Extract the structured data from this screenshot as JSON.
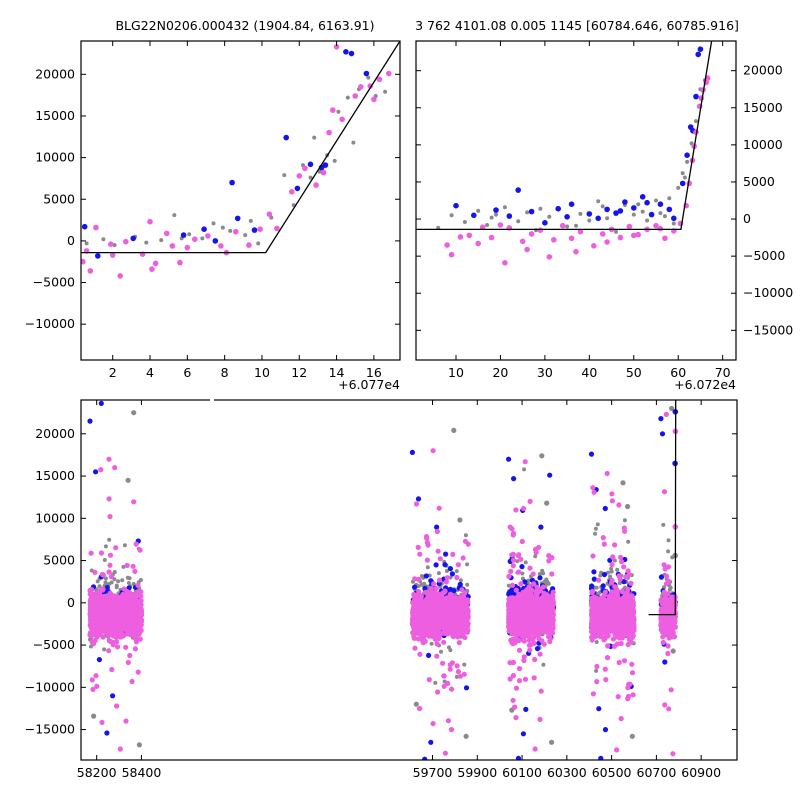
{
  "titles": {
    "left": "BLG22N0206.000432 (1904.84, 6163.91)",
    "right": "3 762 4101.08 0.005 1145 [60784.646, 60785.916]"
  },
  "colors": {
    "gray": "#8a8a8a",
    "blue": "#1414ee",
    "pink": "#ee5ee0",
    "model": "#000000"
  },
  "chart_data": [
    {
      "name": "zoom-short",
      "type": "scatter",
      "title": "BLG22N0206.000432 (1904.84, 6163.91)",
      "offset_label": "+6.077e4",
      "xlim": [
        0.3,
        17.4
      ],
      "ylim": [
        -14300,
        24000
      ],
      "xticks": [
        2,
        4,
        6,
        8,
        10,
        12,
        14,
        16
      ],
      "yticks": [
        -10000,
        -5000,
        0,
        5000,
        10000,
        15000,
        20000
      ],
      "model": {
        "x": [
          0.3,
          10.2,
          17.4
        ],
        "y": [
          -1400,
          -1400,
          24000
        ]
      },
      "series": [
        {
          "name": "gray",
          "color": "#8a8a8a",
          "x": [
            0.6,
            1.5,
            2.1,
            3.2,
            3.8,
            4.6,
            5.3,
            6.1,
            6.8,
            7.4,
            8.3,
            9.1,
            9.8,
            10.5,
            11.2,
            11.7,
            12.2,
            12.8,
            13.1,
            13.5,
            14.1,
            14.6,
            15.2,
            15.7,
            16.1,
            16.6,
            9.4,
            7.9,
            5.7,
            12.6,
            13.9,
            14.9
          ],
          "y": [
            -300,
            200,
            -500,
            500,
            -200,
            100,
            3100,
            800,
            300,
            2100,
            1200,
            700,
            -300,
            2800,
            7900,
            4300,
            9100,
            12400,
            8300,
            10300,
            15500,
            17200,
            18200,
            19600,
            17400,
            17900,
            2400,
            1600,
            300,
            7600,
            9600,
            11800
          ]
        },
        {
          "name": "blue",
          "color": "#1414ee",
          "x": [
            0.5,
            1.2,
            3.1,
            5.8,
            6.9,
            7.5,
            8.4,
            8.7,
            9.6,
            11.3,
            11.9,
            12.6,
            13.2,
            13.4,
            14.5,
            14.8,
            15.6
          ],
          "y": [
            1700,
            -1800,
            300,
            700,
            1400,
            0,
            7000,
            2700,
            1300,
            12400,
            6300,
            9200,
            8800,
            9100,
            22700,
            22500,
            20100
          ]
        },
        {
          "name": "pink",
          "color": "#ee5ee0",
          "x": [
            0.4,
            0.8,
            1.1,
            1.9,
            2.4,
            2.7,
            3.6,
            4.0,
            4.3,
            4.9,
            5.2,
            5.6,
            6.4,
            7.1,
            7.8,
            8.6,
            9.3,
            9.9,
            10.8,
            11.6,
            12.3,
            12.9,
            13.3,
            13.6,
            14.0,
            14.3,
            15.0,
            15.3,
            15.8,
            16.3,
            0.6,
            2.0,
            4.1,
            6.0,
            8.1,
            10.4,
            12.0,
            13.8,
            16.0,
            16.8
          ],
          "y": [
            -2500,
            -3600,
            1600,
            -400,
            -4200,
            -100,
            -1600,
            2300,
            -2700,
            900,
            -600,
            -2600,
            200,
            600,
            -600,
            1100,
            -500,
            1400,
            1500,
            5900,
            8700,
            6700,
            8200,
            13000,
            23300,
            14600,
            17400,
            18500,
            18600,
            19400,
            -1200,
            -1700,
            -3400,
            -800,
            -1400,
            3200,
            7800,
            15700,
            17000,
            20100
          ]
        }
      ]
    },
    {
      "name": "zoom-long",
      "type": "scatter",
      "offset_label": "+6.072e4",
      "xlim": [
        1,
        73
      ],
      "ylim": [
        -19000,
        24000
      ],
      "xticks": [
        10,
        20,
        30,
        40,
        50,
        60,
        70
      ],
      "yticks": [
        -15000,
        -10000,
        -5000,
        0,
        5000,
        10000,
        15000,
        20000
      ],
      "model": {
        "x": [
          1,
          60.6,
          67.5
        ],
        "y": [
          -1400,
          -1400,
          24000
        ]
      },
      "series": [
        {
          "name": "gray",
          "color": "#8a8a8a",
          "x": [
            6,
            9,
            12,
            15,
            17,
            19,
            21,
            24,
            26,
            28,
            31,
            33,
            35,
            38,
            40,
            42,
            44,
            46,
            48,
            50,
            52,
            53,
            55,
            57,
            58,
            59,
            60,
            61,
            62,
            63,
            64,
            65,
            66,
            18,
            29,
            37,
            43,
            51,
            56,
            61.5
          ],
          "y": [
            -1200,
            500,
            -400,
            1100,
            -800,
            600,
            1600,
            -300,
            900,
            -1500,
            300,
            1300,
            -1000,
            700,
            -200,
            2400,
            100,
            -1700,
            1900,
            600,
            1000,
            -200,
            2500,
            400,
            2800,
            -600,
            4200,
            6200,
            7700,
            10200,
            13200,
            17500,
            18700,
            200,
            1400,
            -900,
            1700,
            2000,
            800,
            5600
          ]
        },
        {
          "name": "blue",
          "color": "#1414ee",
          "x": [
            10,
            14,
            19,
            22,
            24,
            27,
            30,
            33,
            36,
            40,
            42,
            44,
            46,
            48,
            50,
            52,
            54,
            56,
            58,
            59,
            61,
            62,
            62.8,
            63.3,
            64,
            64.5,
            65,
            35,
            47,
            53
          ],
          "y": [
            1800,
            500,
            1200,
            400,
            3900,
            1000,
            -500,
            1400,
            2000,
            700,
            100,
            1300,
            800,
            2300,
            1500,
            3000,
            600,
            2000,
            1300,
            100,
            4800,
            8600,
            12400,
            11900,
            16500,
            22200,
            22900,
            300,
            1100,
            2200
          ]
        },
        {
          "name": "pink",
          "color": "#ee5ee0",
          "x": [
            8,
            11,
            13,
            16,
            18,
            20,
            22,
            25,
            27,
            29,
            32,
            34,
            36,
            38,
            41,
            43,
            45,
            47,
            49,
            51,
            53,
            55,
            57,
            59,
            60.5,
            61.8,
            62.5,
            63.2,
            64,
            64.8,
            65.6,
            66.3,
            9,
            15,
            21,
            26,
            31,
            37,
            44,
            50,
            56,
            63.6,
            65.2,
            66.6
          ],
          "y": [
            -3500,
            -2400,
            -2200,
            -1100,
            -2500,
            -800,
            -1200,
            -3000,
            -2000,
            -1500,
            -2800,
            -900,
            -2600,
            -1700,
            -3600,
            -2000,
            -1400,
            -2500,
            -1000,
            -2100,
            -1400,
            -900,
            -2600,
            -1600,
            -600,
            1800,
            4800,
            7900,
            11700,
            15200,
            17400,
            18400,
            -4800,
            -3300,
            -5900,
            -4100,
            -5100,
            -4400,
            -3100,
            -2200,
            -1300,
            9800,
            16300,
            19000
          ]
        }
      ]
    },
    {
      "name": "full-lightcurve",
      "type": "scatter",
      "xlim": [
        58130,
        61060
      ],
      "ylim": [
        -18600,
        24000
      ],
      "xticks": [
        58200,
        58400,
        59700,
        59900,
        60100,
        60300,
        60500,
        60700,
        60900
      ],
      "yticks": [
        -15000,
        -10000,
        -5000,
        0,
        5000,
        10000,
        15000,
        20000
      ],
      "seasons": [
        {
          "x0": 58170,
          "x1": 58400,
          "ngray": 200,
          "nblue": 100,
          "npink": 1300,
          "top": [
            21500,
            17000,
            14500,
            15500,
            16000,
            22500,
            23600
          ],
          "bottom": [
            -17300,
            -16800,
            -15400,
            -14000,
            -13400,
            -11000
          ]
        },
        {
          "x0": 59610,
          "x1": 59860,
          "ngray": 180,
          "nblue": 220,
          "npink": 1300,
          "top": [
            17800,
            18000,
            20400,
            12300,
            11200,
            9800
          ],
          "bottom": [
            -18500,
            -17800,
            -15800,
            -16500,
            -15000,
            -12000
          ]
        },
        {
          "x0": 60040,
          "x1": 60240,
          "ngray": 200,
          "nblue": 260,
          "npink": 1400,
          "top": [
            17000,
            16700,
            17400,
            14700,
            12000,
            11800
          ],
          "bottom": [
            -18400,
            -17300,
            -16500,
            -15500,
            -13800,
            -12700
          ]
        },
        {
          "x0": 60410,
          "x1": 60600,
          "ngray": 180,
          "nblue": 200,
          "npink": 1200,
          "top": [
            17600,
            15300,
            14200,
            13400,
            12900,
            11400
          ],
          "bottom": [
            -18400,
            -17400,
            -15800,
            -15000,
            -13700
          ]
        },
        {
          "x0": 60720,
          "x1": 60785,
          "ngray": 50,
          "nblue": 18,
          "npink": 260,
          "top": [
            21800,
            22300,
            23000,
            20000
          ],
          "bottom": [
            -6000,
            -5700,
            -4900
          ]
        }
      ],
      "model": {
        "x": [
          60665,
          60784.6,
          60786.0
        ],
        "y": [
          -1400,
          -1400,
          24000
        ]
      }
    }
  ]
}
